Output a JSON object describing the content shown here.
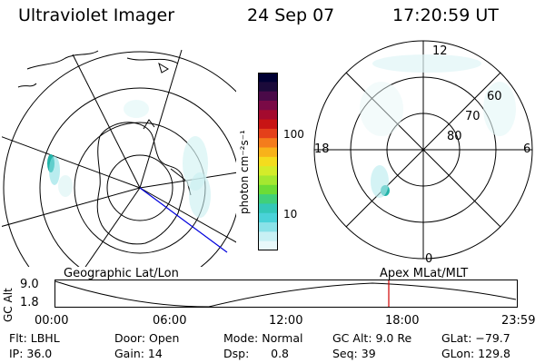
{
  "header": {
    "title": "Ultraviolet Imager",
    "date": "24 Sep 07",
    "time": "17:20:59 UT"
  },
  "colorbar": {
    "label": "photon cm⁻²s⁻¹",
    "ticks": [
      "100",
      "10"
    ],
    "colors": [
      "#000033",
      "#1b0a3a",
      "#4a0a48",
      "#7a0a46",
      "#a40a2e",
      "#c81414",
      "#e4401a",
      "#f47c1c",
      "#f8b21a",
      "#f4dc1e",
      "#d4ec2a",
      "#a4e830",
      "#6cdc36",
      "#40d07a",
      "#34c8b8",
      "#4ad2d8",
      "#8ae2e8",
      "#c8f0f4",
      "#e8f8fa"
    ]
  },
  "left_map": {
    "caption": "Geographic Lat/Lon"
  },
  "right_map": {
    "caption": "Apex MLat/MLT",
    "clock_labels": {
      "top": "12",
      "left": "18",
      "right": "6",
      "bottom": "0"
    },
    "lat_labels": [
      "60",
      "70",
      "80"
    ]
  },
  "altitude_plot": {
    "ylabel": "GC Alt",
    "yticks": [
      "9.0",
      "1.8"
    ],
    "xticks": [
      "00:00",
      "06:00",
      "12:00",
      "18:00",
      "23:59"
    ]
  },
  "status": {
    "flt": "Flt: LBHL",
    "ip": "IP: 36.0",
    "door": "Door: Open",
    "gain": "Gain: 14",
    "mode": "Mode: Normal",
    "dsp": "Dsp:      0.8",
    "gc_alt": "GC Alt: 9.0 Re",
    "seq": "Seq: 39",
    "glat": "GLat: −79.7",
    "glon": "GLon: 129.8"
  }
}
